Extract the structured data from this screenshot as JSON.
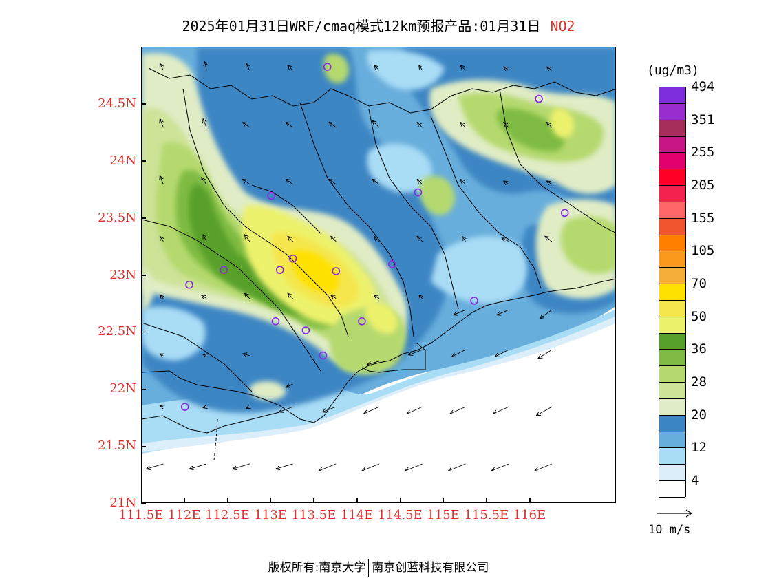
{
  "title": {
    "main": "2025年01月31日WRF/cmaq模式12km预报产品:01月31日",
    "pollutant": "NO2"
  },
  "map": {
    "lon_range": [
      111.5,
      117.0
    ],
    "lat_range": [
      21.0,
      25.0
    ],
    "lat_ticks": [
      {
        "value": 24.5,
        "label": "24.5N"
      },
      {
        "value": 24.0,
        "label": "24N"
      },
      {
        "value": 23.5,
        "label": "23.5N"
      },
      {
        "value": 23.0,
        "label": "23N"
      },
      {
        "value": 22.5,
        "label": "22.5N"
      },
      {
        "value": 22.0,
        "label": "22N"
      },
      {
        "value": 21.5,
        "label": "21.5N"
      },
      {
        "value": 21.0,
        "label": "21N"
      }
    ],
    "lon_ticks": [
      {
        "value": 111.5,
        "label": "111.5E"
      },
      {
        "value": 112.0,
        "label": "112E"
      },
      {
        "value": 112.5,
        "label": "112.5E"
      },
      {
        "value": 113.0,
        "label": "113E"
      },
      {
        "value": 113.5,
        "label": "113.5E"
      },
      {
        "value": 114.0,
        "label": "114E"
      },
      {
        "value": 114.5,
        "label": "114.5E"
      },
      {
        "value": 115.0,
        "label": "115E"
      },
      {
        "value": 115.5,
        "label": "115.5E"
      },
      {
        "value": 116.0,
        "label": "116E"
      }
    ],
    "stations": [
      {
        "lon": 113.65,
        "lat": 24.83
      },
      {
        "lon": 116.1,
        "lat": 24.55
      },
      {
        "lon": 113.0,
        "lat": 23.7
      },
      {
        "lon": 114.7,
        "lat": 23.73
      },
      {
        "lon": 116.4,
        "lat": 23.55
      },
      {
        "lon": 113.25,
        "lat": 23.15
      },
      {
        "lon": 113.1,
        "lat": 23.05
      },
      {
        "lon": 113.75,
        "lat": 23.04
      },
      {
        "lon": 112.45,
        "lat": 23.05
      },
      {
        "lon": 112.05,
        "lat": 22.92
      },
      {
        "lon": 114.4,
        "lat": 23.1
      },
      {
        "lon": 115.35,
        "lat": 22.78
      },
      {
        "lon": 113.05,
        "lat": 22.6
      },
      {
        "lon": 114.05,
        "lat": 22.6
      },
      {
        "lon": 113.4,
        "lat": 22.52
      },
      {
        "lon": 113.6,
        "lat": 22.3
      },
      {
        "lon": 112.0,
        "lat": 21.85
      }
    ],
    "winds": [
      {
        "lon": 111.75,
        "lat": 21.35,
        "u": -5,
        "v": -1.5
      },
      {
        "lon": 112.25,
        "lat": 21.35,
        "u": -5,
        "v": -1.5
      },
      {
        "lon": 112.75,
        "lat": 21.35,
        "u": -5,
        "v": -1.5
      },
      {
        "lon": 113.25,
        "lat": 21.35,
        "u": -5,
        "v": -1.5
      },
      {
        "lon": 113.75,
        "lat": 21.35,
        "u": -5,
        "v": -2
      },
      {
        "lon": 114.25,
        "lat": 21.35,
        "u": -5,
        "v": -2
      },
      {
        "lon": 114.75,
        "lat": 21.35,
        "u": -5,
        "v": -2
      },
      {
        "lon": 115.25,
        "lat": 21.35,
        "u": -5,
        "v": -2
      },
      {
        "lon": 115.75,
        "lat": 21.35,
        "u": -5,
        "v": -2
      },
      {
        "lon": 116.25,
        "lat": 21.35,
        "u": -5,
        "v": -2
      },
      {
        "lon": 113.25,
        "lat": 21.85,
        "u": -4,
        "v": -1.5
      },
      {
        "lon": 113.75,
        "lat": 21.85,
        "u": -4,
        "v": -1.5
      },
      {
        "lon": 114.25,
        "lat": 21.85,
        "u": -4.5,
        "v": -2
      },
      {
        "lon": 114.75,
        "lat": 21.85,
        "u": -4.5,
        "v": -2
      },
      {
        "lon": 115.25,
        "lat": 21.85,
        "u": -4.5,
        "v": -2
      },
      {
        "lon": 115.75,
        "lat": 21.85,
        "u": -4.5,
        "v": -2
      },
      {
        "lon": 116.25,
        "lat": 21.85,
        "u": -4.5,
        "v": -2.5
      },
      {
        "lon": 114.75,
        "lat": 22.35,
        "u": -4,
        "v": -1.5
      },
      {
        "lon": 115.25,
        "lat": 22.35,
        "u": -4,
        "v": -2
      },
      {
        "lon": 115.75,
        "lat": 22.35,
        "u": -4,
        "v": -2
      },
      {
        "lon": 116.25,
        "lat": 22.35,
        "u": -4,
        "v": -2.5
      },
      {
        "lon": 114.25,
        "lat": 22.25,
        "u": -3.5,
        "v": -1
      },
      {
        "lon": 115.25,
        "lat": 22.7,
        "u": -3.5,
        "v": -1.5
      },
      {
        "lon": 115.75,
        "lat": 22.7,
        "u": -3.5,
        "v": -1.5
      },
      {
        "lon": 116.25,
        "lat": 22.7,
        "u": -3.5,
        "v": -2.5
      },
      {
        "lon": 112.75,
        "lat": 22.3,
        "u": -2,
        "v": 0.5
      },
      {
        "lon": 112.25,
        "lat": 22.3,
        "u": -1,
        "v": 0.3
      },
      {
        "lon": 113.25,
        "lat": 22.05,
        "u": -2,
        "v": -1
      },
      {
        "lon": 112.75,
        "lat": 21.85,
        "u": -1,
        "v": -0.5
      },
      {
        "lon": 112.25,
        "lat": 21.85,
        "u": -1,
        "v": -0.3
      },
      {
        "lon": 111.75,
        "lat": 21.85,
        "u": -1,
        "v": 0.3
      },
      {
        "lon": 111.75,
        "lat": 22.3,
        "u": -1,
        "v": 0.5
      },
      {
        "lon": 111.75,
        "lat": 22.8,
        "u": -1,
        "v": 1
      },
      {
        "lon": 112.25,
        "lat": 22.8,
        "u": -1.5,
        "v": 1
      },
      {
        "lon": 112.75,
        "lat": 22.8,
        "u": -1.5,
        "v": 1.5
      },
      {
        "lon": 113.25,
        "lat": 22.8,
        "u": -1.5,
        "v": 1.5
      },
      {
        "lon": 113.75,
        "lat": 22.8,
        "u": -1.5,
        "v": 1
      },
      {
        "lon": 114.25,
        "lat": 22.8,
        "u": -1.5,
        "v": 1
      },
      {
        "lon": 114.75,
        "lat": 22.8,
        "u": -1,
        "v": 1
      },
      {
        "lon": 111.75,
        "lat": 23.3,
        "u": -1,
        "v": 1.5
      },
      {
        "lon": 112.25,
        "lat": 23.3,
        "u": -1,
        "v": 2
      },
      {
        "lon": 112.75,
        "lat": 23.3,
        "u": -1.5,
        "v": 2
      },
      {
        "lon": 113.25,
        "lat": 23.3,
        "u": -1.5,
        "v": 1.5
      },
      {
        "lon": 113.75,
        "lat": 23.3,
        "u": -1.5,
        "v": 1.5
      },
      {
        "lon": 114.25,
        "lat": 23.3,
        "u": -1.5,
        "v": 1.5
      },
      {
        "lon": 114.75,
        "lat": 23.3,
        "u": -1.5,
        "v": 1.5
      },
      {
        "lon": 115.25,
        "lat": 23.3,
        "u": -1,
        "v": 1.5
      },
      {
        "lon": 115.75,
        "lat": 23.3,
        "u": -2,
        "v": 1
      },
      {
        "lon": 116.25,
        "lat": 23.3,
        "u": -2,
        "v": 1.5
      },
      {
        "lon": 111.75,
        "lat": 23.8,
        "u": -1,
        "v": 2.5
      },
      {
        "lon": 112.25,
        "lat": 23.8,
        "u": -1.5,
        "v": 2
      },
      {
        "lon": 112.75,
        "lat": 23.8,
        "u": -2,
        "v": 1.5
      },
      {
        "lon": 113.25,
        "lat": 23.8,
        "u": -2,
        "v": 1.5
      },
      {
        "lon": 113.75,
        "lat": 23.8,
        "u": -2,
        "v": 1.5
      },
      {
        "lon": 114.25,
        "lat": 23.8,
        "u": -2,
        "v": 1.5
      },
      {
        "lon": 114.75,
        "lat": 23.8,
        "u": -1.5,
        "v": 1.5
      },
      {
        "lon": 115.25,
        "lat": 23.8,
        "u": -1.5,
        "v": 1.5
      },
      {
        "lon": 115.75,
        "lat": 23.8,
        "u": -1.5,
        "v": 1
      },
      {
        "lon": 116.25,
        "lat": 23.8,
        "u": -1.5,
        "v": 1
      },
      {
        "lon": 111.75,
        "lat": 24.3,
        "u": -1,
        "v": 2.5
      },
      {
        "lon": 112.25,
        "lat": 24.3,
        "u": -1,
        "v": 2.5
      },
      {
        "lon": 112.75,
        "lat": 24.3,
        "u": -2,
        "v": 1.5
      },
      {
        "lon": 113.25,
        "lat": 24.3,
        "u": -2,
        "v": 1.5
      },
      {
        "lon": 113.75,
        "lat": 24.3,
        "u": -2,
        "v": 1.5
      },
      {
        "lon": 114.25,
        "lat": 24.3,
        "u": -2,
        "v": 2
      },
      {
        "lon": 114.75,
        "lat": 24.3,
        "u": -1.5,
        "v": 1.5
      },
      {
        "lon": 115.25,
        "lat": 24.3,
        "u": -1.5,
        "v": 1.5
      },
      {
        "lon": 115.75,
        "lat": 24.3,
        "u": -1.5,
        "v": 1.5
      },
      {
        "lon": 116.25,
        "lat": 24.3,
        "u": -1.5,
        "v": 1.5
      },
      {
        "lon": 111.75,
        "lat": 24.8,
        "u": -1,
        "v": 2
      },
      {
        "lon": 112.25,
        "lat": 24.8,
        "u": -0.5,
        "v": 2.5
      },
      {
        "lon": 112.75,
        "lat": 24.8,
        "u": -1,
        "v": 2
      },
      {
        "lon": 113.25,
        "lat": 24.8,
        "u": -1.5,
        "v": 1.5
      },
      {
        "lon": 114.25,
        "lat": 24.8,
        "u": -1.5,
        "v": 1.5
      },
      {
        "lon": 114.75,
        "lat": 24.8,
        "u": -1,
        "v": 1.5
      },
      {
        "lon": 115.25,
        "lat": 24.8,
        "u": -1.5,
        "v": 1.5
      },
      {
        "lon": 115.75,
        "lat": 24.8,
        "u": -1.5,
        "v": 1
      },
      {
        "lon": 116.25,
        "lat": 24.8,
        "u": -1.5,
        "v": 1
      }
    ]
  },
  "legend": {
    "unit": "(ug/m3)",
    "colors": [
      "#ffffff",
      "#dbeef9",
      "#a9dcf5",
      "#68aedc",
      "#3d86c4",
      "#e0ecc5",
      "#cde398",
      "#b5d96e",
      "#7fbb42",
      "#58a02c",
      "#edf26d",
      "#f5e64d",
      "#ffe100",
      "#f5ae3a",
      "#f99a1c",
      "#ff7f00",
      "#f0542e",
      "#ff6666",
      "#f2234f",
      "#ff0026",
      "#e3006e",
      "#c71685",
      "#a62f5a",
      "#9a2ecc",
      "#7e2edb"
    ],
    "labels": [
      {
        "after_index": 1,
        "text": "4"
      },
      {
        "after_index": 3,
        "text": "12"
      },
      {
        "after_index": 5,
        "text": "20"
      },
      {
        "after_index": 7,
        "text": "28"
      },
      {
        "after_index": 9,
        "text": "36"
      },
      {
        "after_index": 11,
        "text": "50"
      },
      {
        "after_index": 13,
        "text": "70"
      },
      {
        "after_index": 15,
        "text": "105"
      },
      {
        "after_index": 17,
        "text": "155"
      },
      {
        "after_index": 19,
        "text": "205"
      },
      {
        "after_index": 21,
        "text": "255"
      },
      {
        "after_index": 23,
        "text": "351"
      },
      {
        "after_index": 25,
        "text": "494"
      }
    ]
  },
  "wind_reference": {
    "label": "10 m/s",
    "speed": 10
  },
  "footer": {
    "left": "版权所有:南京大学",
    "right": "南京创蓝科技有限公司"
  }
}
